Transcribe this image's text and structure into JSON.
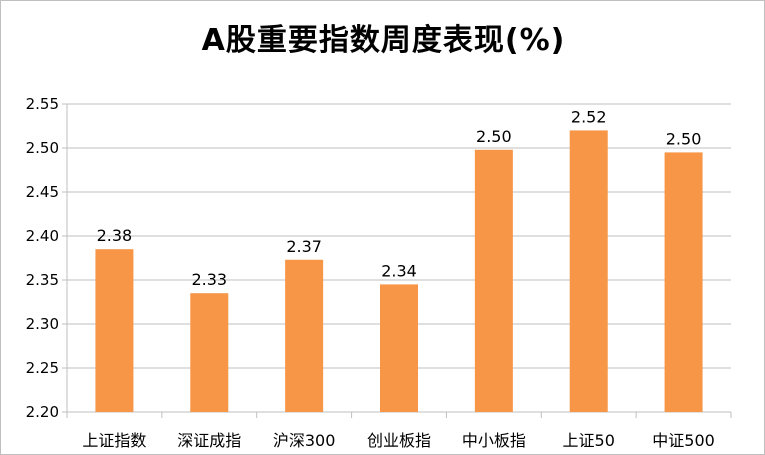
{
  "chart_data": {
    "type": "bar",
    "title": "A股重要指数周度表现(%)",
    "xlabel": "",
    "ylabel": "",
    "categories": [
      "上证指数",
      "深证成指",
      "沪深300",
      "创业板指",
      "中小板指",
      "上证50",
      "中证500"
    ],
    "values": [
      2.385,
      2.335,
      2.373,
      2.345,
      2.498,
      2.52,
      2.495
    ],
    "data_labels": [
      "2.38",
      "2.33",
      "2.37",
      "2.34",
      "2.50",
      "2.52",
      "2.50"
    ],
    "ylim": [
      2.2,
      2.55
    ],
    "yticks": [
      "2.20",
      "2.25",
      "2.30",
      "2.35",
      "2.40",
      "2.45",
      "2.50",
      "2.55"
    ],
    "grid": true,
    "legend": "none",
    "bar_color": "#f79646",
    "grid_color": "#bfbfbf"
  }
}
